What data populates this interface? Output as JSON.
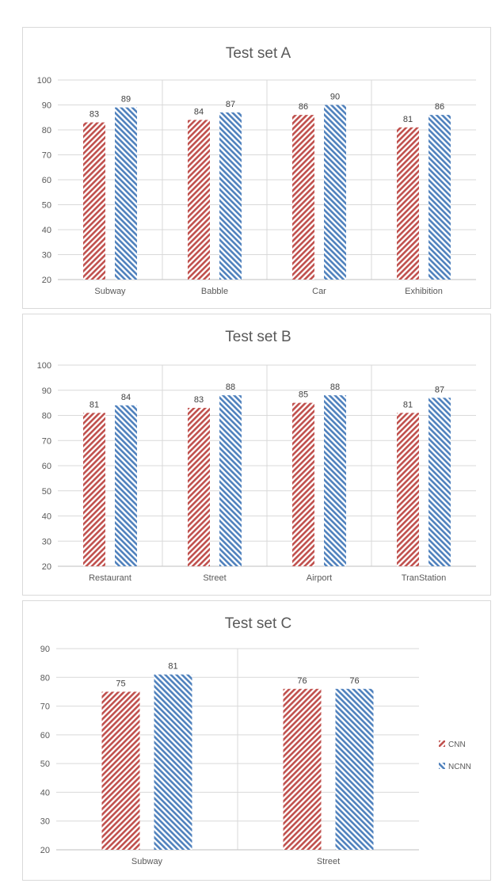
{
  "colors": {
    "CNN": "#c0504d",
    "NCNN": "#4f81bd",
    "grid": "#d9d9d9",
    "axis": "#bfbfbf"
  },
  "legend": {
    "placement": "right",
    "entries": [
      "CNN",
      "NCNN"
    ]
  },
  "chart_data": [
    {
      "type": "bar",
      "title": "Test set A",
      "categories": [
        "Subway",
        "Babble",
        "Car",
        "Exhibition"
      ],
      "series": [
        {
          "name": "CNN",
          "values": [
            83,
            84,
            86,
            81
          ]
        },
        {
          "name": "NCNN",
          "values": [
            89,
            87,
            90,
            86
          ]
        }
      ],
      "ylim": [
        20,
        100
      ],
      "yticks": [
        20,
        30,
        40,
        50,
        60,
        70,
        80,
        90,
        100
      ],
      "grid": true
    },
    {
      "type": "bar",
      "title": "Test set B",
      "categories": [
        "Restaurant",
        "Street",
        "Airport",
        "TranStation"
      ],
      "series": [
        {
          "name": "CNN",
          "values": [
            81,
            83,
            85,
            81
          ]
        },
        {
          "name": "NCNN",
          "values": [
            84,
            88,
            88,
            87
          ]
        }
      ],
      "ylim": [
        20,
        100
      ],
      "yticks": [
        20,
        30,
        40,
        50,
        60,
        70,
        80,
        90,
        100
      ],
      "grid": true
    },
    {
      "type": "bar",
      "title": "Test set C",
      "categories": [
        "Subway",
        "Street"
      ],
      "series": [
        {
          "name": "CNN",
          "values": [
            75,
            76
          ]
        },
        {
          "name": "NCNN",
          "values": [
            81,
            76
          ]
        }
      ],
      "ylim": [
        20,
        90
      ],
      "yticks": [
        20,
        30,
        40,
        50,
        60,
        70,
        80,
        90
      ],
      "grid": true
    }
  ]
}
